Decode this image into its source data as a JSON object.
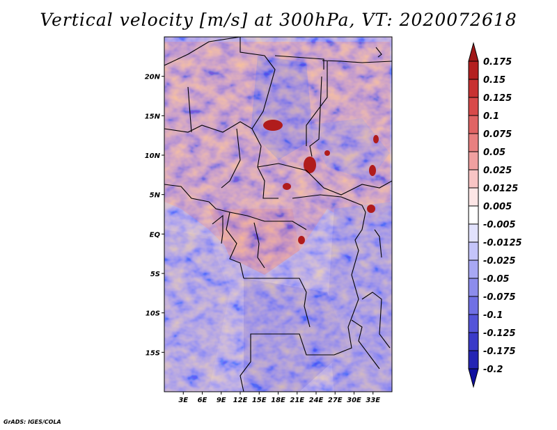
{
  "title": "Vertical velocity [m/s] at 300hPa, VT: 2020072618",
  "credit": "GrADS: IGES/COLA",
  "map": {
    "lon_range": [
      0,
      36
    ],
    "lat_range": [
      -20,
      25
    ],
    "lat_labels": [
      {
        "lat": 20,
        "label": "20N"
      },
      {
        "lat": 15,
        "label": "15N"
      },
      {
        "lat": 10,
        "label": "10N"
      },
      {
        "lat": 5,
        "label": "5N"
      },
      {
        "lat": 0,
        "label": "EQ"
      },
      {
        "lat": -5,
        "label": "5S"
      },
      {
        "lat": -10,
        "label": "10S"
      },
      {
        "lat": -15,
        "label": "15S"
      }
    ],
    "lon_labels": [
      {
        "lon": 3,
        "label": "3E"
      },
      {
        "lon": 6,
        "label": "6E"
      },
      {
        "lon": 9,
        "label": "9E"
      },
      {
        "lon": 12,
        "label": "12E"
      },
      {
        "lon": 15,
        "label": "15E"
      },
      {
        "lon": 18,
        "label": "18E"
      },
      {
        "lon": 21,
        "label": "21E"
      },
      {
        "lon": 24,
        "label": "24E"
      },
      {
        "lon": 27,
        "label": "27E"
      },
      {
        "lon": 30,
        "label": "30E"
      },
      {
        "lon": 33,
        "label": "33E"
      }
    ]
  },
  "colorbar": {
    "labels": [
      "0.175",
      "0.15",
      "0.125",
      "0.1",
      "0.075",
      "0.05",
      "0.025",
      "0.0125",
      "0.005",
      "-0.005",
      "-0.0125",
      "-0.025",
      "-0.05",
      "-0.075",
      "-0.1",
      "-0.125",
      "-0.175",
      "-0.2"
    ],
    "colors": [
      "#a01818",
      "#b42020",
      "#c83232",
      "#d84a4a",
      "#e06464",
      "#e88080",
      "#f0a0a0",
      "#f8c4c4",
      "#fde6e6",
      "#ffffff",
      "#e2e2fd",
      "#c4c4fa",
      "#a8a8f4",
      "#8c8cec",
      "#7070e4",
      "#5454d8",
      "#3a3ac8",
      "#2424b4",
      "#1010a0"
    ]
  }
}
